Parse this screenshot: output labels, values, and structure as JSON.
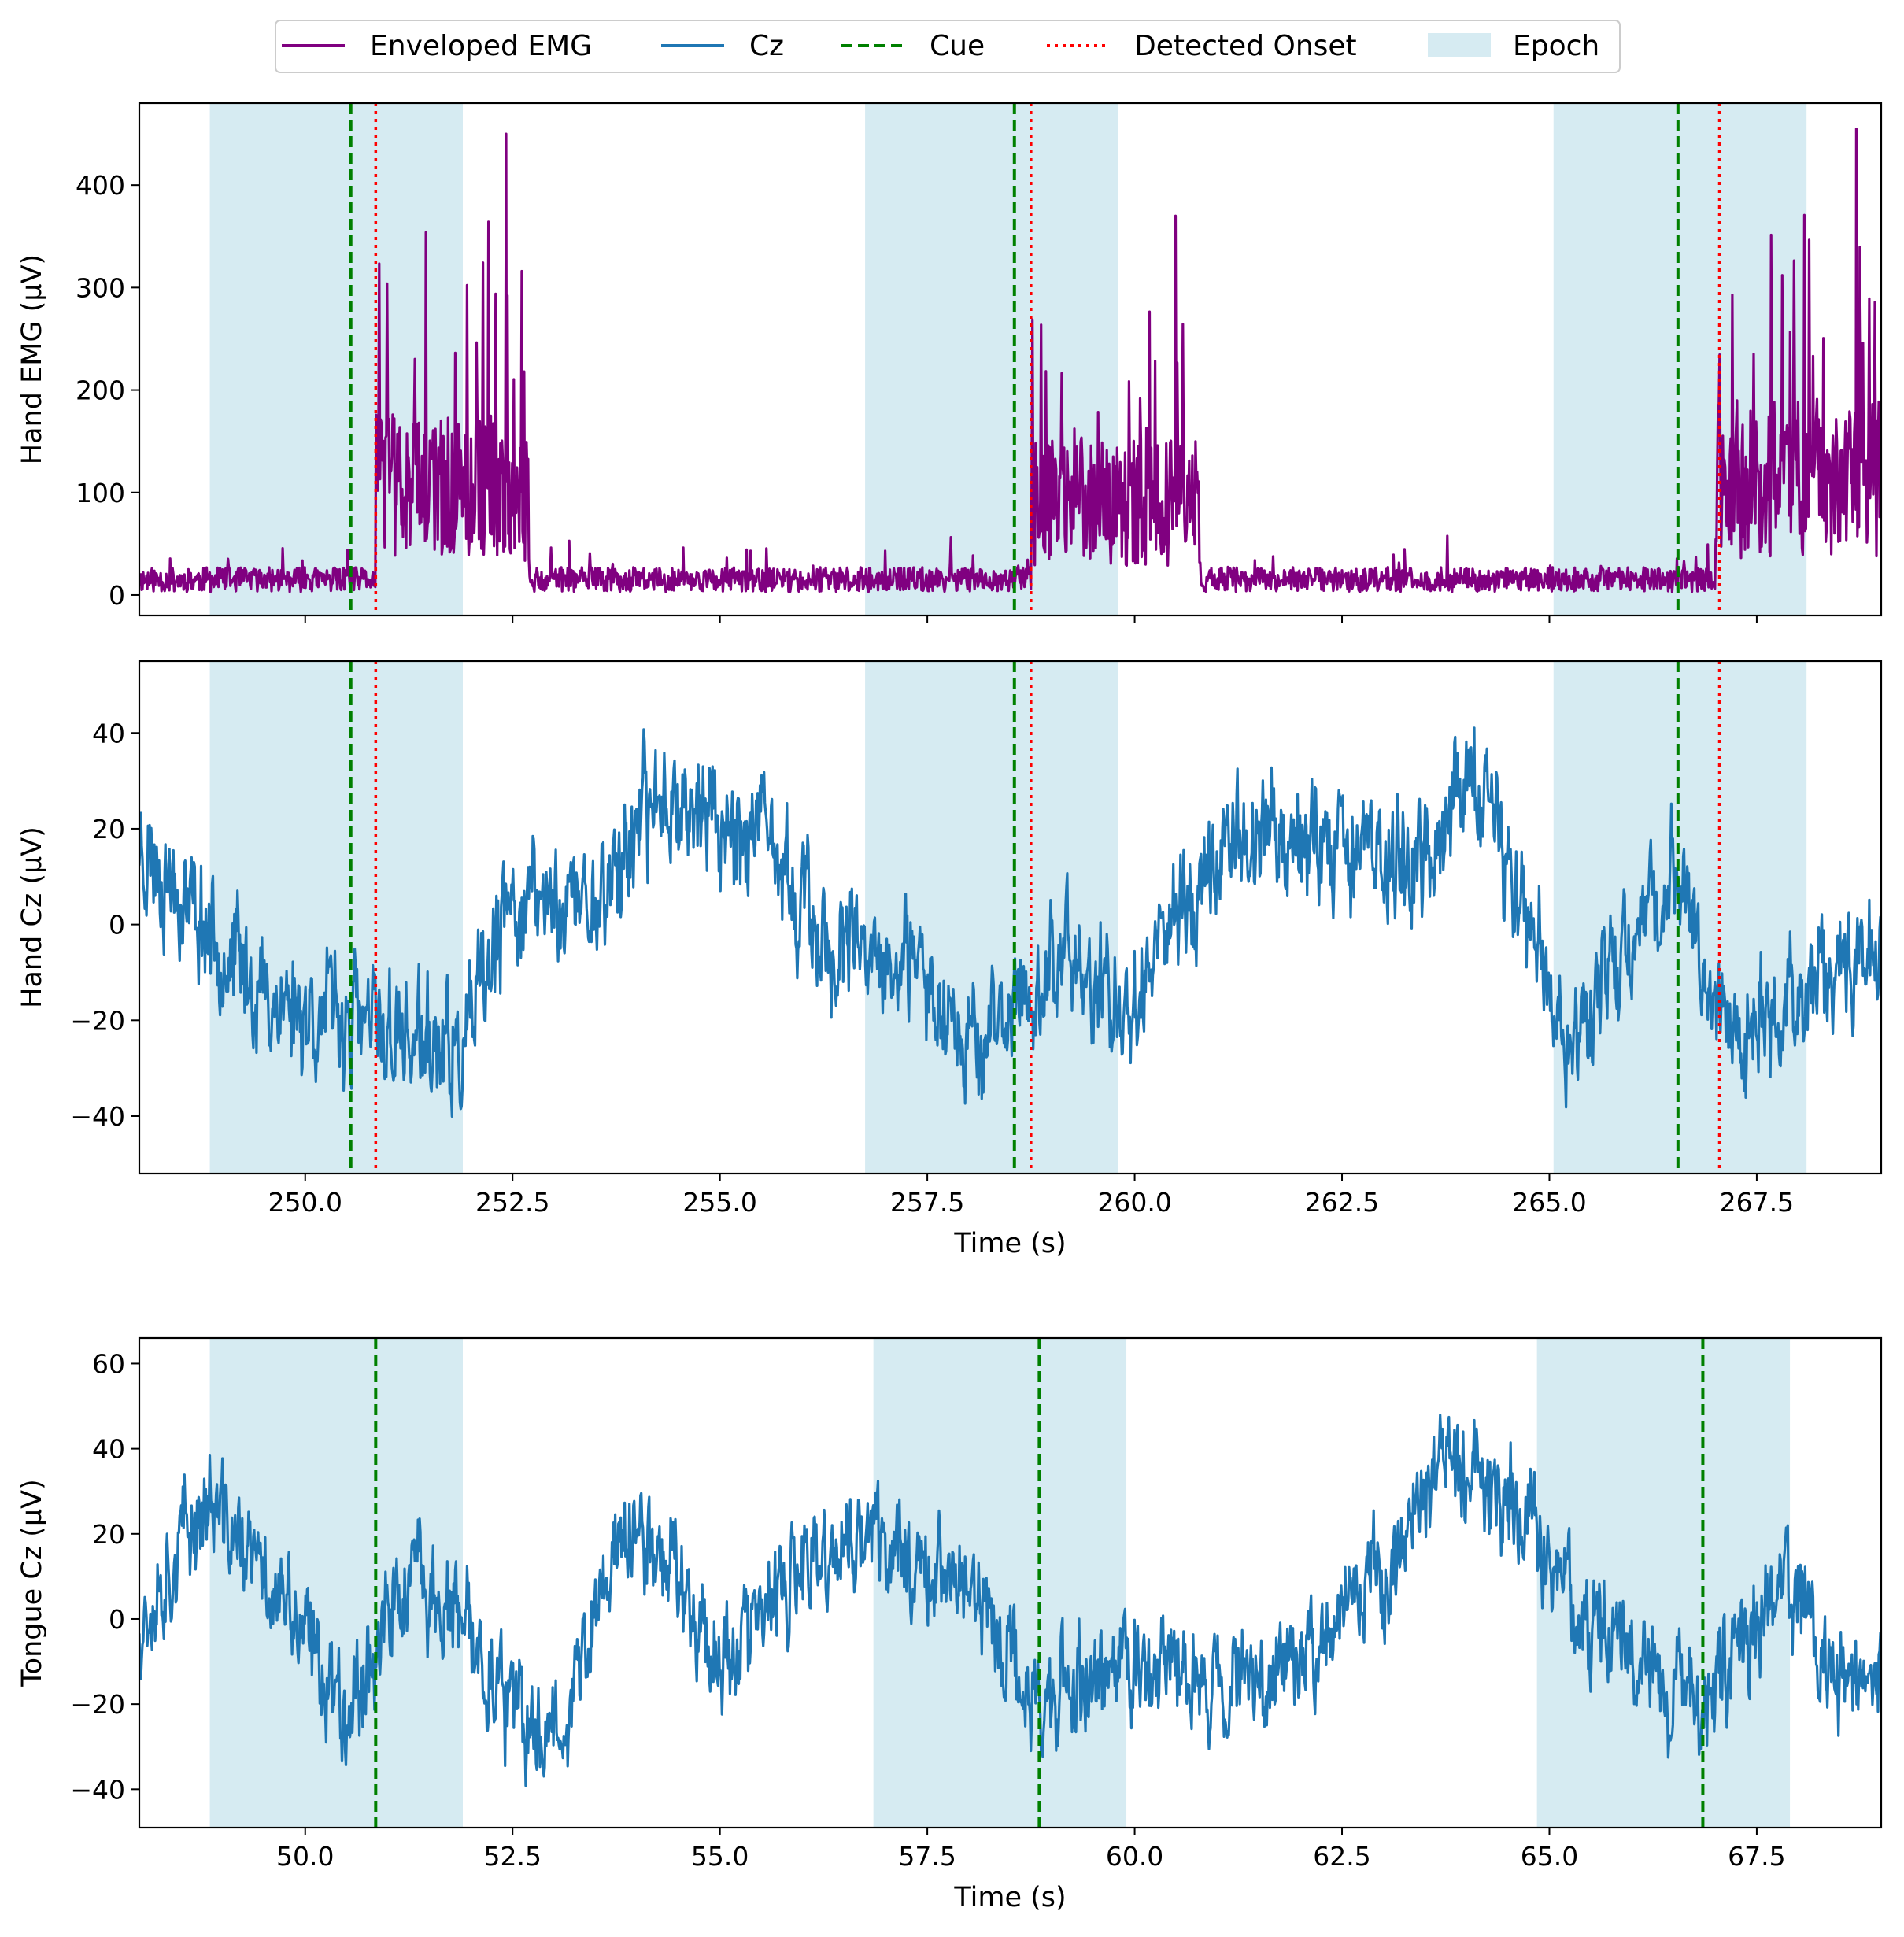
{
  "legend": {
    "items": [
      {
        "label": "Enveloped EMG",
        "style": "solid",
        "color": "#800080"
      },
      {
        "label": "Cz",
        "style": "solid",
        "color": "#1f77b4"
      },
      {
        "label": "Cue",
        "style": "dashed",
        "color": "#008000"
      },
      {
        "label": "Detected Onset",
        "style": "dotted",
        "color": "#ff0000"
      },
      {
        "label": "Epoch",
        "style": "patch",
        "color": "#add8e6"
      }
    ]
  },
  "chart_data": [
    {
      "type": "line",
      "name": "hand-emg",
      "series": [
        {
          "name": "Enveloped EMG",
          "color": "#800080",
          "baseline": 15,
          "noise": 12,
          "seed": 11,
          "bursts": [
            [
              250.85,
              252.7,
              110,
              90,
              450
            ],
            [
              258.75,
              260.8,
              95,
              85,
              370
            ],
            [
              267.0,
              269.0,
              120,
              95,
              455
            ]
          ]
        }
      ],
      "xlim": [
        248.0,
        269.0
      ],
      "ylim": [
        -20,
        480
      ],
      "yticks": [
        0,
        100,
        200,
        300,
        400
      ],
      "xticks": [
        250.0,
        252.5,
        255.0,
        257.5,
        260.0,
        262.5,
        265.0,
        267.5
      ],
      "xtick_labels_visible": false,
      "ylabel": "Hand EMG (μV)",
      "xlabel": "",
      "cues": [
        250.55,
        258.55,
        266.55
      ],
      "onsets": [
        250.85,
        258.75,
        267.05
      ],
      "epochs": [
        [
          248.85,
          251.9
        ],
        [
          256.75,
          259.8
        ],
        [
          265.05,
          268.1
        ]
      ]
    },
    {
      "type": "line",
      "name": "hand-cz",
      "series": [
        {
          "name": "Cz",
          "color": "#1f77b4",
          "seed": 23,
          "noise": 9,
          "trend": [
            [
              248.0,
              18
            ],
            [
              249.5,
              -15
            ],
            [
              250.5,
              -20
            ],
            [
              251.9,
              -28
            ],
            [
              252.5,
              5
            ],
            [
              253.5,
              5
            ],
            [
              254.3,
              28
            ],
            [
              255.5,
              18
            ],
            [
              256.3,
              -5
            ],
            [
              257.5,
              -12
            ],
            [
              258.2,
              -25
            ],
            [
              259.2,
              -5
            ],
            [
              259.8,
              -20
            ],
            [
              260.3,
              -2
            ],
            [
              261.3,
              20
            ],
            [
              262.5,
              18
            ],
            [
              263.5,
              12
            ],
            [
              264.0,
              30
            ],
            [
              264.6,
              8
            ],
            [
              265.2,
              -25
            ],
            [
              266.5,
              12
            ],
            [
              267.2,
              -25
            ],
            [
              268.0,
              -15
            ],
            [
              269.0,
              -5
            ]
          ]
        }
      ],
      "xlim": [
        248.0,
        269.0
      ],
      "ylim": [
        -52,
        55
      ],
      "yticks": [
        -40,
        -20,
        0,
        20,
        40
      ],
      "xticks": [
        250.0,
        252.5,
        255.0,
        257.5,
        260.0,
        262.5,
        265.0,
        267.5
      ],
      "xtick_labels": [
        "250.0",
        "252.5",
        "255.0",
        "257.5",
        "260.0",
        "262.5",
        "265.0",
        "267.5"
      ],
      "xtick_labels_visible": true,
      "ylabel": "Hand Cz (μV)",
      "xlabel": "Time (s)",
      "cues": [
        250.55,
        258.55,
        266.55
      ],
      "onsets": [
        250.85,
        258.75,
        267.05
      ],
      "epochs": [
        [
          248.85,
          251.9
        ],
        [
          256.75,
          259.8
        ],
        [
          265.05,
          268.1
        ]
      ]
    },
    {
      "type": "line",
      "name": "tongue-cz",
      "series": [
        {
          "name": "Cz",
          "color": "#1f77b4",
          "seed": 37,
          "noise": 9,
          "trend": [
            [
              48.0,
              0
            ],
            [
              48.8,
              28
            ],
            [
              49.5,
              10
            ],
            [
              50.5,
              -20
            ],
            [
              51.3,
              10
            ],
            [
              52.0,
              -5
            ],
            [
              52.7,
              -28
            ],
            [
              53.2,
              -20
            ],
            [
              53.8,
              20
            ],
            [
              54.4,
              15
            ],
            [
              55.0,
              -10
            ],
            [
              56.0,
              10
            ],
            [
              56.8,
              20
            ],
            [
              58.0,
              8
            ],
            [
              58.8,
              -20
            ],
            [
              60.0,
              -10
            ],
            [
              61.0,
              -15
            ],
            [
              62.0,
              -8
            ],
            [
              63.0,
              10
            ],
            [
              63.7,
              38
            ],
            [
              64.5,
              28
            ],
            [
              65.5,
              0
            ],
            [
              66.8,
              -20
            ],
            [
              67.3,
              -5
            ],
            [
              67.8,
              10
            ],
            [
              68.5,
              -15
            ],
            [
              69.0,
              -20
            ]
          ]
        }
      ],
      "xlim": [
        48.0,
        69.0
      ],
      "ylim": [
        -49,
        66
      ],
      "yticks": [
        -40,
        -20,
        0,
        20,
        40,
        60
      ],
      "xticks": [
        50.0,
        52.5,
        55.0,
        57.5,
        60.0,
        62.5,
        65.0,
        67.5
      ],
      "xtick_labels": [
        "50.0",
        "52.5",
        "55.0",
        "57.5",
        "60.0",
        "62.5",
        "65.0",
        "67.5"
      ],
      "xtick_labels_visible": true,
      "ylabel": "Tongue Cz (μV)",
      "xlabel": "Time (s)",
      "cues": [
        50.85,
        58.85,
        66.85
      ],
      "onsets": [],
      "epochs": [
        [
          48.85,
          51.9
        ],
        [
          56.85,
          59.9
        ],
        [
          64.85,
          67.9
        ]
      ]
    }
  ]
}
